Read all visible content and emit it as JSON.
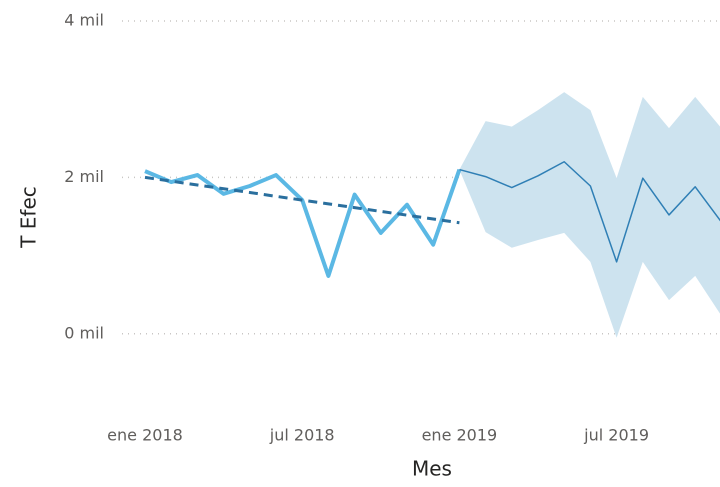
{
  "chart_data": {
    "type": "line",
    "x_label": "Mes",
    "y_label": "T Efec",
    "categories": [
      "ene 2018",
      null,
      null,
      null,
      null,
      null,
      "jul 2018",
      null,
      null,
      null,
      null,
      null,
      "ene 2019",
      null,
      null,
      null,
      null,
      null,
      "jul 2019",
      null,
      null,
      null,
      null
    ],
    "series": [
      {
        "color": "#5bb8e4",
        "width": 4,
        "dash": false,
        "values": [
          2080,
          1940,
          2030,
          1790,
          1890,
          2030,
          1710,
          740,
          1780,
          1290,
          1650,
          1140,
          2100,
          null,
          null,
          null,
          null,
          null,
          null,
          null,
          null,
          null,
          null
        ]
      },
      {
        "color": "#2f7fb5",
        "width": 1.5,
        "dash": false,
        "values": [
          null,
          null,
          null,
          null,
          null,
          null,
          null,
          null,
          null,
          null,
          null,
          null,
          2100,
          2010,
          1870,
          2020,
          2200,
          1890,
          920,
          1990,
          1520,
          1880,
          1430
        ]
      },
      {
        "color": "#2a6f9e",
        "width": 3,
        "dash": true,
        "values": [
          2000,
          1952,
          1903,
          1855,
          1807,
          1758,
          1710,
          1662,
          1613,
          1565,
          1517,
          1468,
          1420,
          null,
          null,
          null,
          null,
          null,
          null,
          null,
          null,
          null,
          null
        ]
      }
    ],
    "band": {
      "color": "#cde3ef",
      "upper": [
        null,
        null,
        null,
        null,
        null,
        null,
        null,
        null,
        null,
        null,
        null,
        null,
        2100,
        2720,
        2650,
        2860,
        3090,
        2860,
        1990,
        3030,
        2630,
        3030,
        2630
      ],
      "lower": [
        null,
        null,
        null,
        null,
        null,
        null,
        null,
        null,
        null,
        null,
        null,
        null,
        2100,
        1300,
        1100,
        1200,
        1290,
        920,
        -50,
        920,
        430,
        740,
        230
      ]
    },
    "ylim": [
      -1000,
      4000
    ],
    "yticks": [
      {
        "value": 0,
        "label": "0 mil"
      },
      {
        "value": 2000,
        "label": "2 mil"
      },
      {
        "value": 4000,
        "label": "4 mil"
      }
    ],
    "grid": true
  }
}
